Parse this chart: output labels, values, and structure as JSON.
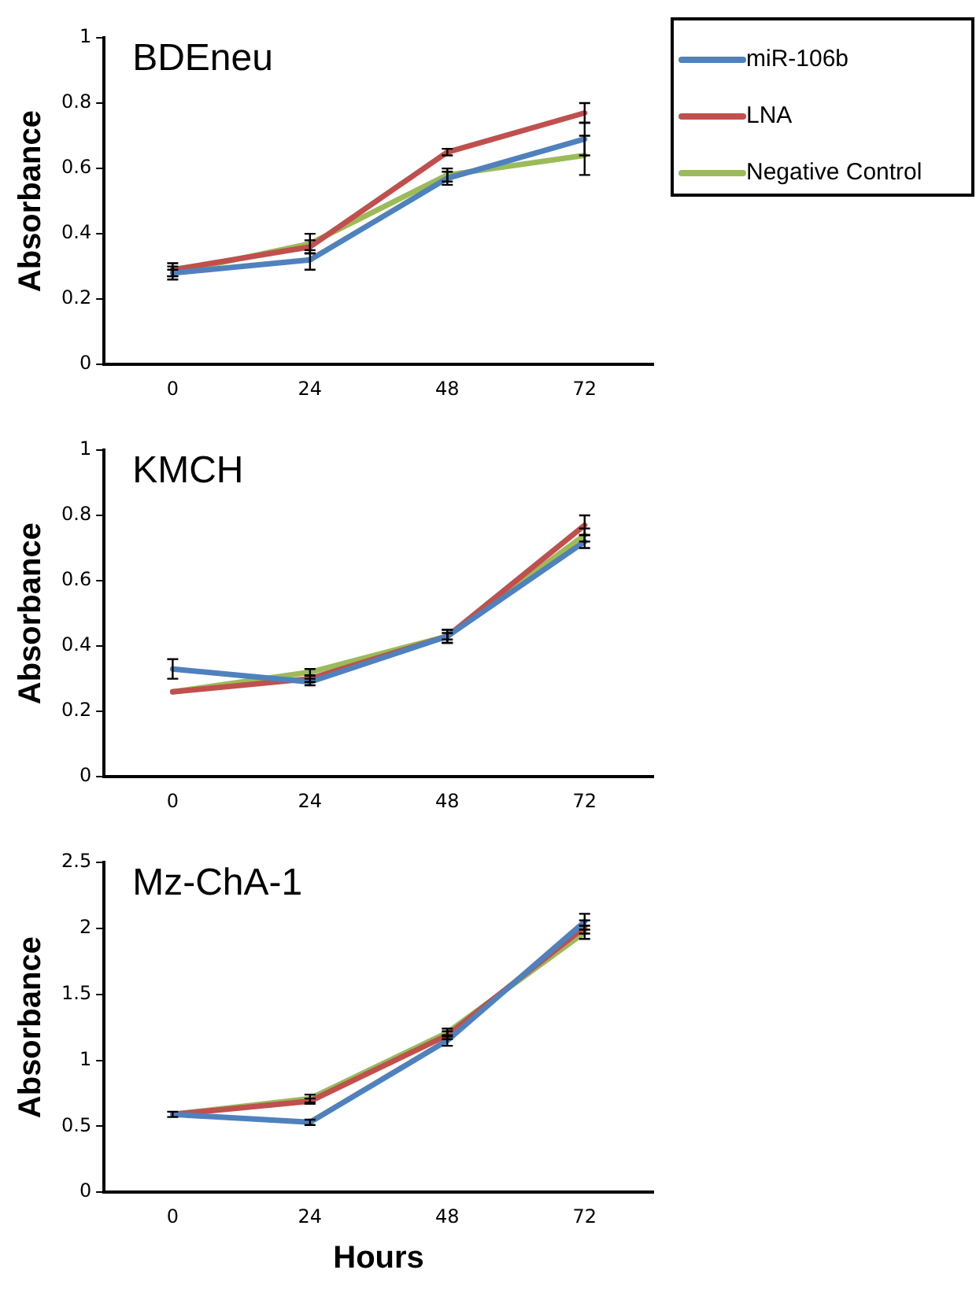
{
  "chart_data": [
    {
      "type": "line",
      "title": "BDEneu",
      "ylabel": "Absorbance",
      "categories": [
        "0",
        "24",
        "48",
        "72"
      ],
      "ylim": [
        0,
        1
      ],
      "yticks": [
        0,
        0.2,
        0.4,
        0.6,
        0.8,
        1
      ],
      "grid": false,
      "legend": "top right",
      "line_style": "solid",
      "series": [
        {
          "name": "miR-106b",
          "color": "#4f81bd",
          "values": [
            0.28,
            0.32,
            0.57,
            0.69
          ],
          "errors": [
            0.02,
            0.03,
            0.02,
            0.05
          ]
        },
        {
          "name": "LNA",
          "color": "#c0504d",
          "values": [
            0.29,
            0.36,
            0.65,
            0.77
          ],
          "errors": [
            0.02,
            0.02,
            0.01,
            0.03
          ]
        },
        {
          "name": "Negative Control",
          "color": "#9bbb59",
          "values": [
            0.28,
            0.37,
            0.58,
            0.64
          ],
          "errors": [
            0.01,
            0.03,
            0.02,
            0.06
          ]
        }
      ]
    },
    {
      "type": "line",
      "title": "KMCH",
      "ylabel": "Absorbance",
      "categories": [
        "0",
        "24",
        "48",
        "72"
      ],
      "ylim": [
        0,
        1
      ],
      "yticks": [
        0,
        0.2,
        0.4,
        0.6,
        0.8,
        1
      ],
      "grid": false,
      "line_style": "solid",
      "series": [
        {
          "color": "#4f81bd",
          "values": [
            0.33,
            0.29,
            0.43,
            0.72
          ],
          "errors": [
            0.03,
            0.01,
            0.02,
            0.02
          ]
        },
        {
          "color": "#c0504d",
          "values": [
            0.26,
            0.3,
            0.43,
            0.77
          ],
          "errors": [
            null,
            0.01,
            0.01,
            0.03
          ]
        },
        {
          "color": "#9bbb59",
          "values": [
            0.26,
            0.32,
            0.43,
            0.74
          ],
          "errors": [
            null,
            0.01,
            0.02,
            0.02
          ]
        }
      ]
    },
    {
      "type": "line",
      "title": "Mz-ChA-1",
      "ylabel": "Absorbance",
      "xlabel": "Hours",
      "categories": [
        "0",
        "24",
        "48",
        "72"
      ],
      "ylim": [
        0,
        2.5
      ],
      "yticks": [
        0,
        0.5,
        1,
        1.5,
        2,
        2.5
      ],
      "grid": false,
      "line_style": "solid",
      "series": [
        {
          "color": "#4f81bd",
          "values": [
            0.59,
            0.53,
            1.15,
            2.05
          ],
          "errors": [
            0.02,
            0.02,
            0.04,
            0.06
          ]
        },
        {
          "color": "#c0504d",
          "values": [
            0.59,
            0.69,
            1.19,
            2.01
          ],
          "errors": [
            null,
            0.02,
            0.03,
            0.05
          ]
        },
        {
          "color": "#9bbb59",
          "values": [
            0.59,
            0.71,
            1.21,
            1.97
          ],
          "errors": [
            null,
            0.03,
            0.03,
            0.05
          ]
        }
      ]
    }
  ]
}
